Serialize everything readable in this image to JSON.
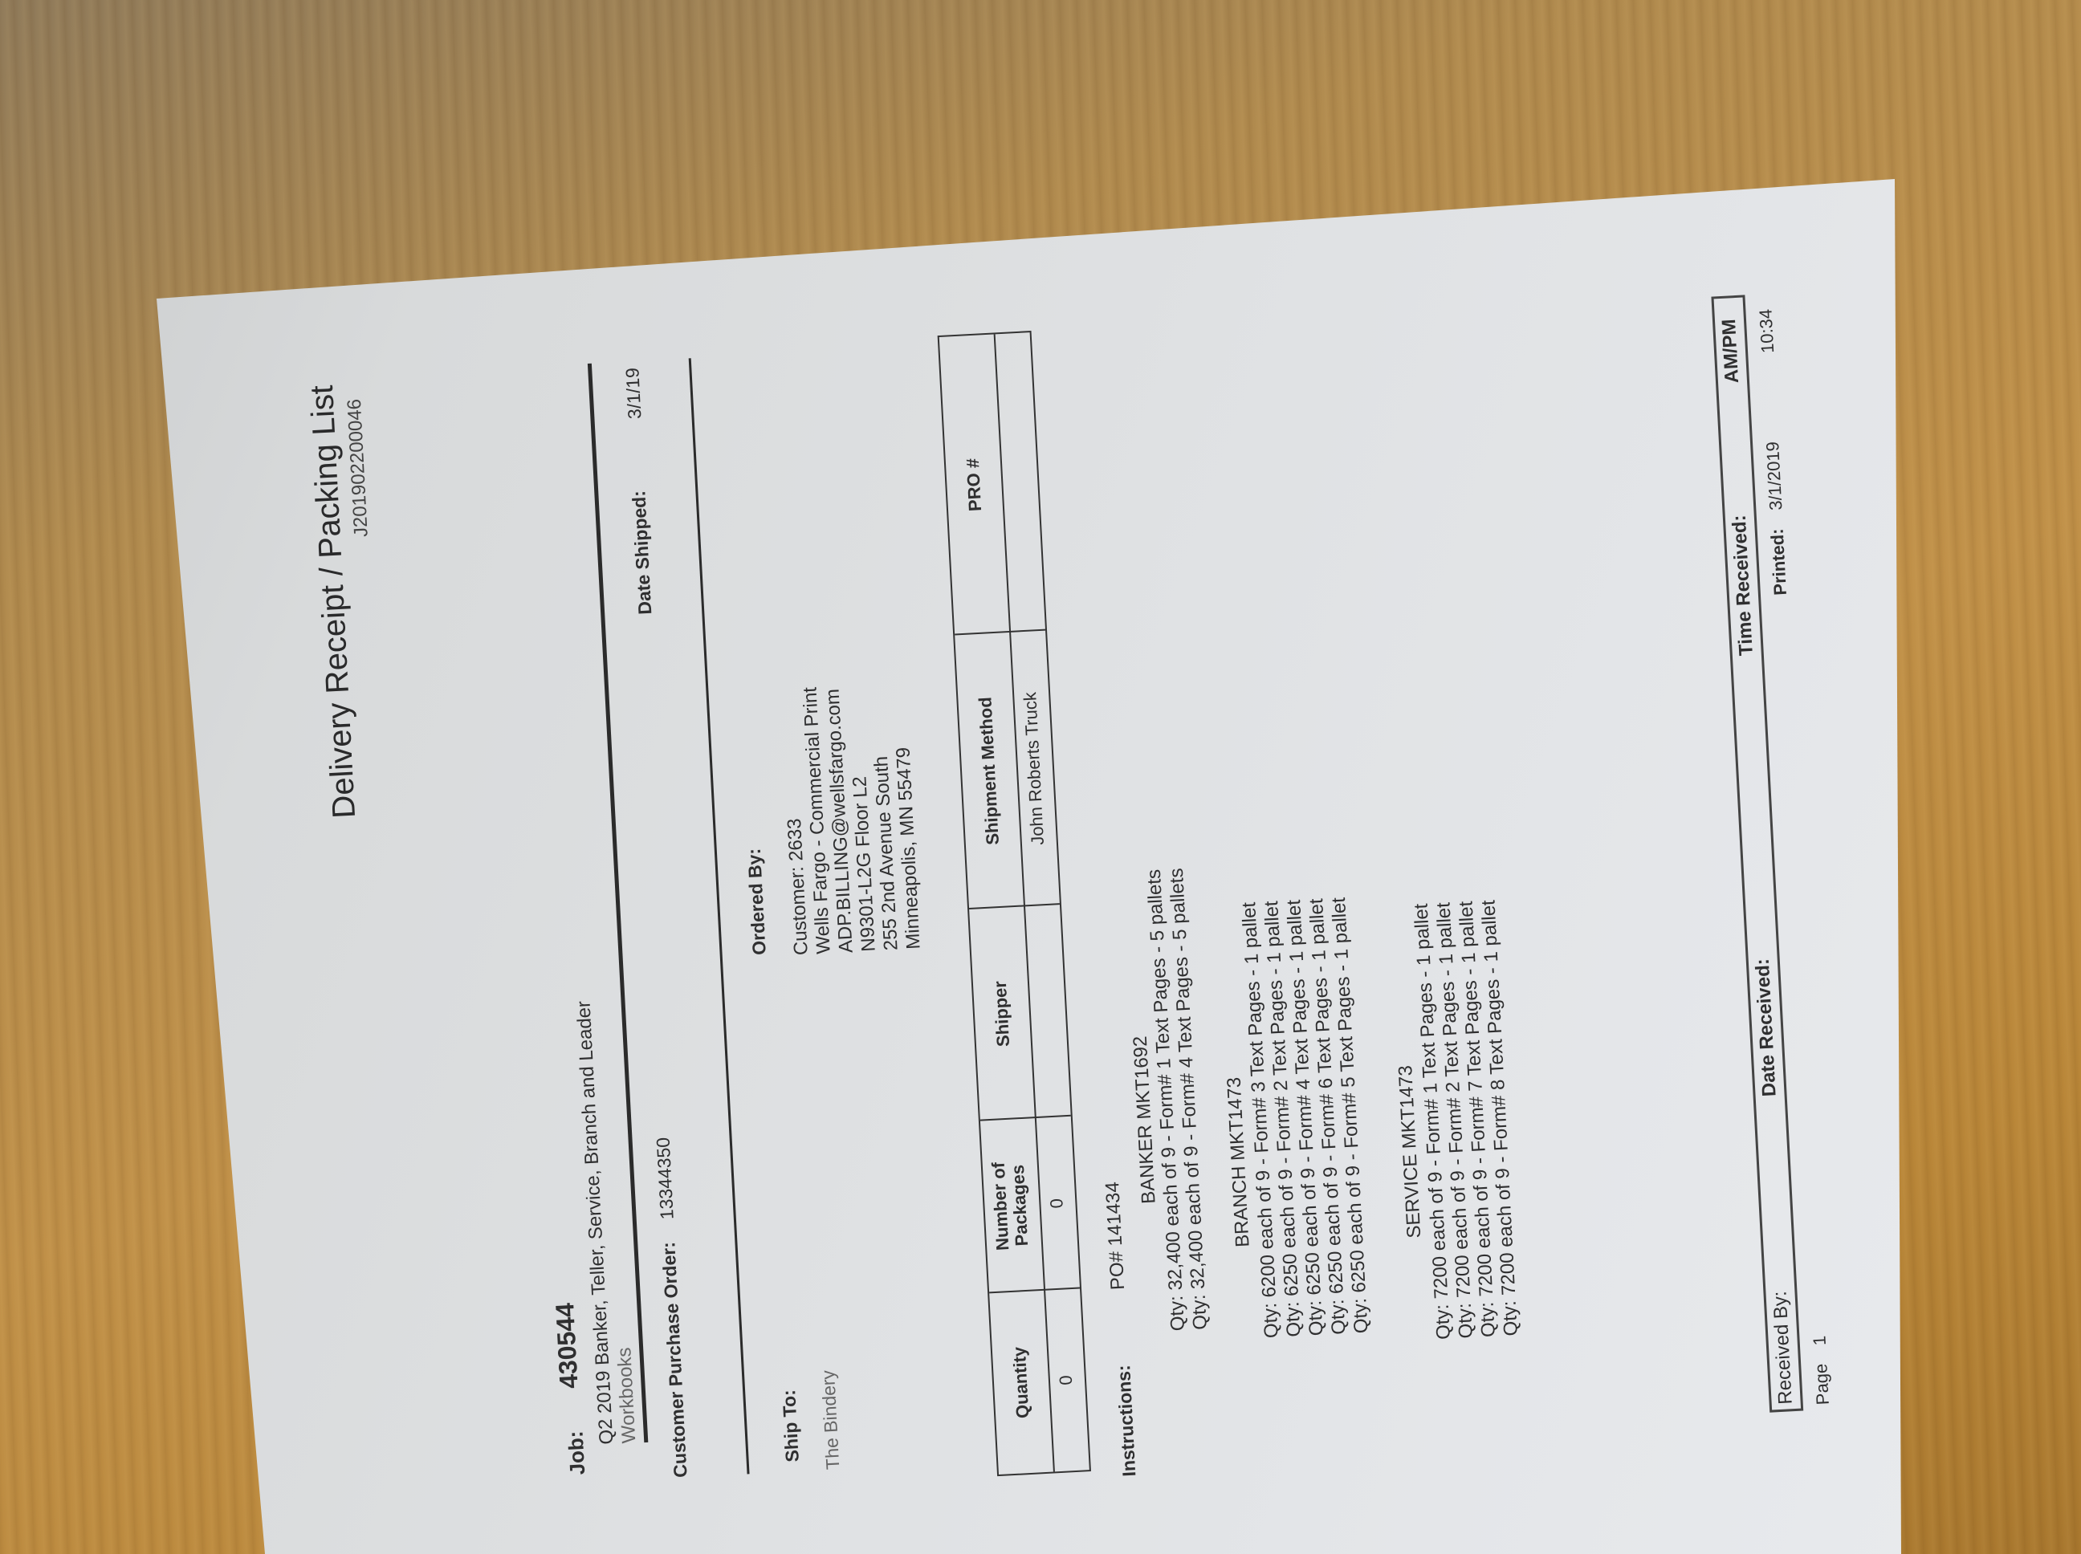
{
  "header": {
    "title": "Delivery Receipt / Packing List",
    "receipt_number": "J201902200046"
  },
  "job": {
    "label": "Job:",
    "number": "430544",
    "description_line1": "Q2 2019 Banker, Teller, Service, Branch and Leader",
    "description_line2": "Workbooks",
    "po_label": "Customer Purchase Order:",
    "po_value": "13344350",
    "date_shipped_label": "Date Shipped:",
    "date_shipped_value": "3/1/19"
  },
  "ship_to": {
    "label": "Ship To:",
    "name": "The Bindery"
  },
  "ordered_by": {
    "label": "Ordered By:",
    "lines": [
      "Customer: 2633",
      "Wells Fargo - Commercial Print",
      "ADP.BILLING@wellsfargo.com",
      "N9301-L2G  Floor L2",
      "255 2nd Avenue South",
      "Minneapolis, MN 55479"
    ]
  },
  "shipment_table": {
    "headers": [
      "Quantity",
      "Number of Packages",
      "Shipper",
      "Shipment Method",
      "PRO #"
    ],
    "row": [
      "0",
      "0",
      "",
      "John Roberts Truck",
      ""
    ]
  },
  "instructions": {
    "label": "Instructions:",
    "po": "PO# 141434",
    "groups": [
      {
        "title": "BANKER  MKT1692",
        "lines": [
          "Qty: 32,400 each of 9  -  Form# 1  Text Pages  -  5 pallets",
          "Qty: 32,400 each of 9  -  Form# 4  Text Pages  -  5 pallets"
        ]
      },
      {
        "title": "BRANCH  MKT1473",
        "lines": [
          "Qty: 6200 each of 9  -  Form# 3  Text Pages  -  1 pallet",
          "Qty: 6250 each of 9  -  Form# 2  Text Pages  -  1 pallet",
          "Qty: 6250 each of 9  -  Form# 4  Text Pages  -  1 pallet",
          "Qty: 6250 each of 9  -  Form# 6  Text Pages  -  1 pallet",
          "Qty: 6250 each of 9  -  Form# 5  Text Pages  -  1 pallet"
        ]
      },
      {
        "title": "SERVICE  MKT1473",
        "lines": [
          "Qty: 7200 each of 9  -  Form# 1  Text Pages  -  1 pallet",
          "Qty: 7200 each of 9  -  Form# 2  Text Pages  -  1 pallet",
          "Qty: 7200 each of 9  -  Form# 7  Text Pages  -  1 pallet",
          "Qty: 7200 each of 9  -  Form# 8  Text Pages  -  1 pallet"
        ]
      }
    ]
  },
  "footer": {
    "received_by": "Received By:",
    "date_received": "Date Received:",
    "time_received": "Time Received:",
    "am_pm": "AM/PM",
    "page_label": "Page",
    "page_number": "1",
    "printed_label": "Printed:",
    "printed_date": "3/1/2019",
    "printed_time": "10:34"
  }
}
